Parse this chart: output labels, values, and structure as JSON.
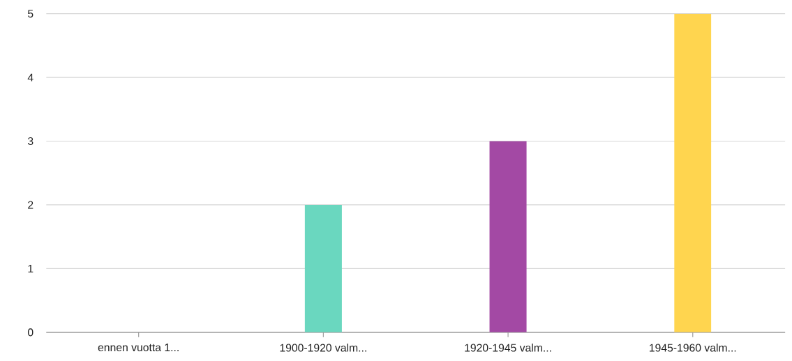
{
  "chart_data": {
    "type": "bar",
    "categories": [
      "ennen vuotta 1...",
      "1900-1920 valm...",
      "1920-1945 valm...",
      "1945-1960 valm..."
    ],
    "values": [
      0,
      2,
      3,
      5
    ],
    "colors": [
      "#6ad7bf",
      "#6ad7bf",
      "#a349a4",
      "#ffd54f"
    ],
    "ylim": [
      0,
      5
    ],
    "yticks": [
      0,
      1,
      2,
      3,
      4,
      5
    ],
    "grid": "y"
  }
}
